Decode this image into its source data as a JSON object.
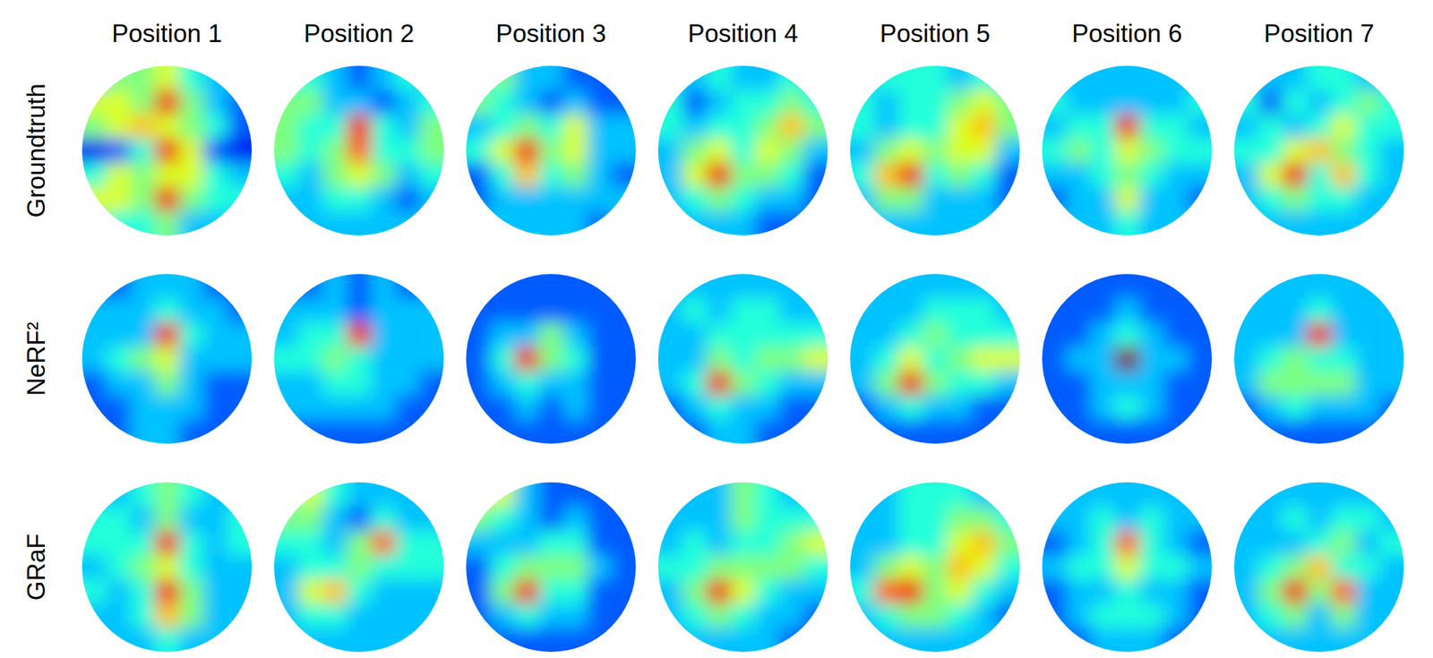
{
  "chart_data": {
    "type": "heatmap_grid",
    "columns": [
      "Position 1",
      "Position 2",
      "Position 3",
      "Position 4",
      "Position 5",
      "Position 6",
      "Position 7"
    ],
    "rows": [
      "Groundtruth",
      "NeRF²",
      "GRaF"
    ],
    "color_range": [
      0,
      10
    ],
    "cells": [
      [
        [
          [
            3,
            5,
            5,
            6,
            4,
            3,
            3
          ],
          [
            6,
            6,
            5,
            9,
            5,
            3,
            2
          ],
          [
            5,
            6,
            7,
            6,
            5,
            4,
            2
          ],
          [
            1,
            2,
            4,
            9,
            6,
            2,
            1
          ],
          [
            4,
            6,
            5,
            6,
            6,
            4,
            3
          ],
          [
            6,
            6,
            5,
            9,
            5,
            4,
            4
          ],
          [
            5,
            4,
            4,
            5,
            3,
            3,
            3
          ]
        ],
        [
          [
            4,
            4,
            3,
            2,
            3,
            4,
            3
          ],
          [
            5,
            5,
            3,
            3,
            2,
            3,
            4
          ],
          [
            5,
            4,
            4,
            9,
            4,
            3,
            5
          ],
          [
            5,
            4,
            5,
            8,
            4,
            4,
            5
          ],
          [
            4,
            3,
            5,
            6,
            5,
            3,
            4
          ],
          [
            3,
            3,
            4,
            4,
            3,
            2,
            3
          ],
          [
            3,
            3,
            3,
            3,
            3,
            3,
            3
          ]
        ],
        [
          [
            4,
            5,
            3,
            3,
            2,
            2,
            2
          ],
          [
            5,
            4,
            3,
            2,
            3,
            2,
            2
          ],
          [
            3,
            4,
            5,
            4,
            6,
            3,
            3
          ],
          [
            4,
            6,
            9,
            5,
            6,
            3,
            3
          ],
          [
            2,
            4,
            7,
            4,
            5,
            3,
            2
          ],
          [
            2,
            3,
            3,
            3,
            3,
            3,
            3
          ],
          [
            3,
            3,
            3,
            3,
            3,
            2,
            3
          ]
        ],
        [
          [
            3,
            3,
            4,
            3,
            3,
            4,
            3
          ],
          [
            4,
            2,
            3,
            4,
            4,
            5,
            4
          ],
          [
            4,
            3,
            4,
            4,
            5,
            7,
            5
          ],
          [
            3,
            5,
            6,
            4,
            6,
            5,
            3
          ],
          [
            3,
            6,
            9,
            5,
            5,
            4,
            2
          ],
          [
            3,
            4,
            5,
            4,
            3,
            3,
            2
          ],
          [
            3,
            3,
            3,
            3,
            2,
            2,
            2
          ]
        ],
        [
          [
            3,
            4,
            4,
            4,
            3,
            4,
            3
          ],
          [
            4,
            3,
            4,
            4,
            5,
            6,
            5
          ],
          [
            4,
            3,
            4,
            4,
            6,
            7,
            5
          ],
          [
            3,
            5,
            6,
            5,
            6,
            6,
            3
          ],
          [
            4,
            7,
            9,
            4,
            5,
            4,
            2
          ],
          [
            3,
            5,
            5,
            3,
            3,
            3,
            2
          ],
          [
            3,
            3,
            3,
            3,
            3,
            3,
            3
          ]
        ],
        [
          [
            3,
            3,
            3,
            3,
            3,
            3,
            3
          ],
          [
            4,
            3,
            3,
            3,
            3,
            3,
            4
          ],
          [
            3,
            4,
            4,
            9,
            4,
            4,
            3
          ],
          [
            4,
            5,
            4,
            6,
            5,
            4,
            4
          ],
          [
            3,
            3,
            4,
            5,
            4,
            3,
            3
          ],
          [
            2,
            3,
            3,
            6,
            3,
            3,
            2
          ],
          [
            3,
            3,
            3,
            4,
            3,
            3,
            3
          ]
        ],
        [
          [
            3,
            3,
            3,
            4,
            4,
            3,
            3
          ],
          [
            4,
            2,
            4,
            3,
            4,
            5,
            4
          ],
          [
            3,
            4,
            3,
            4,
            6,
            4,
            4
          ],
          [
            4,
            4,
            6,
            7,
            5,
            4,
            3
          ],
          [
            3,
            6,
            9,
            4,
            7,
            4,
            3
          ],
          [
            3,
            4,
            5,
            4,
            4,
            3,
            3
          ],
          [
            3,
            3,
            3,
            3,
            3,
            3,
            3
          ]
        ]
      ],
      [
        [
          [
            2,
            2,
            3,
            3,
            3,
            2,
            2
          ],
          [
            3,
            3,
            3,
            4,
            3,
            3,
            2
          ],
          [
            3,
            3,
            3,
            9,
            4,
            3,
            3
          ],
          [
            3,
            4,
            5,
            6,
            3,
            3,
            3
          ],
          [
            2,
            3,
            3,
            5,
            3,
            2,
            2
          ],
          [
            2,
            2,
            3,
            3,
            3,
            2,
            2
          ],
          [
            2,
            2,
            3,
            3,
            2,
            2,
            2
          ]
        ],
        [
          [
            2,
            2,
            3,
            2,
            3,
            2,
            2
          ],
          [
            3,
            3,
            3,
            2,
            3,
            3,
            3
          ],
          [
            3,
            4,
            4,
            9,
            3,
            3,
            3
          ],
          [
            4,
            4,
            5,
            4,
            3,
            3,
            3
          ],
          [
            3,
            3,
            4,
            4,
            3,
            3,
            2
          ],
          [
            3,
            3,
            3,
            3,
            3,
            2,
            2
          ],
          [
            2,
            2,
            2,
            2,
            2,
            2,
            2
          ]
        ],
        [
          [
            2,
            2,
            2,
            2,
            2,
            2,
            2
          ],
          [
            2,
            2,
            2,
            2,
            2,
            2,
            2
          ],
          [
            2,
            3,
            3,
            5,
            3,
            2,
            2
          ],
          [
            2,
            4,
            9,
            5,
            4,
            2,
            2
          ],
          [
            2,
            3,
            4,
            3,
            3,
            2,
            2
          ],
          [
            2,
            2,
            3,
            2,
            3,
            2,
            2
          ],
          [
            2,
            2,
            2,
            2,
            2,
            2,
            2
          ]
        ],
        [
          [
            3,
            3,
            3,
            3,
            3,
            3,
            3
          ],
          [
            3,
            4,
            3,
            4,
            4,
            3,
            3
          ],
          [
            3,
            3,
            4,
            4,
            4,
            4,
            4
          ],
          [
            3,
            3,
            5,
            4,
            5,
            5,
            6
          ],
          [
            3,
            4,
            9,
            5,
            4,
            3,
            3
          ],
          [
            2,
            3,
            4,
            3,
            3,
            2,
            2
          ],
          [
            2,
            2,
            3,
            3,
            2,
            2,
            2
          ]
        ],
        [
          [
            3,
            3,
            3,
            3,
            3,
            3,
            3
          ],
          [
            3,
            3,
            3,
            4,
            4,
            4,
            3
          ],
          [
            3,
            3,
            4,
            5,
            4,
            4,
            4
          ],
          [
            3,
            4,
            6,
            4,
            5,
            6,
            6
          ],
          [
            3,
            5,
            9,
            5,
            4,
            4,
            3
          ],
          [
            2,
            3,
            4,
            3,
            3,
            2,
            2
          ],
          [
            2,
            2,
            2,
            2,
            2,
            2,
            2
          ]
        ],
        [
          [
            2,
            2,
            2,
            2,
            2,
            2,
            2
          ],
          [
            2,
            2,
            2,
            3,
            2,
            2,
            2
          ],
          [
            2,
            2,
            3,
            4,
            3,
            2,
            2
          ],
          [
            2,
            3,
            3,
            10,
            3,
            3,
            2
          ],
          [
            2,
            2,
            3,
            3,
            3,
            2,
            2
          ],
          [
            2,
            2,
            3,
            4,
            3,
            2,
            2
          ],
          [
            2,
            2,
            2,
            2,
            2,
            2,
            2
          ]
        ],
        [
          [
            3,
            3,
            3,
            3,
            3,
            3,
            3
          ],
          [
            3,
            3,
            3,
            4,
            3,
            3,
            3
          ],
          [
            3,
            3,
            3,
            9,
            3,
            3,
            3
          ],
          [
            3,
            4,
            5,
            4,
            4,
            3,
            3
          ],
          [
            3,
            5,
            5,
            5,
            5,
            3,
            3
          ],
          [
            2,
            3,
            4,
            3,
            3,
            3,
            2
          ],
          [
            2,
            2,
            2,
            2,
            2,
            2,
            2
          ]
        ]
      ],
      [
        [
          [
            3,
            3,
            4,
            5,
            4,
            3,
            3
          ],
          [
            4,
            4,
            3,
            5,
            3,
            3,
            4
          ],
          [
            4,
            4,
            4,
            9,
            4,
            3,
            4
          ],
          [
            3,
            4,
            5,
            6,
            4,
            3,
            3
          ],
          [
            4,
            3,
            4,
            9,
            5,
            3,
            3
          ],
          [
            3,
            3,
            4,
            7,
            5,
            3,
            3
          ],
          [
            3,
            3,
            3,
            4,
            3,
            3,
            3
          ]
        ],
        [
          [
            4,
            6,
            4,
            3,
            3,
            3,
            3
          ],
          [
            5,
            5,
            3,
            2,
            4,
            3,
            3
          ],
          [
            4,
            4,
            3,
            5,
            8,
            4,
            4
          ],
          [
            3,
            4,
            4,
            5,
            4,
            4,
            4
          ],
          [
            3,
            6,
            7,
            4,
            3,
            3,
            3
          ],
          [
            3,
            4,
            4,
            3,
            3,
            3,
            3
          ],
          [
            3,
            3,
            3,
            3,
            3,
            3,
            3
          ]
        ],
        [
          [
            6,
            6,
            3,
            2,
            2,
            2,
            2
          ],
          [
            5,
            4,
            3,
            2,
            3,
            2,
            2
          ],
          [
            3,
            3,
            3,
            4,
            4,
            2,
            2
          ],
          [
            2,
            4,
            5,
            5,
            5,
            3,
            2
          ],
          [
            2,
            5,
            9,
            4,
            4,
            2,
            2
          ],
          [
            2,
            3,
            4,
            3,
            3,
            2,
            2
          ],
          [
            2,
            2,
            2,
            2,
            2,
            2,
            2
          ]
        ],
        [
          [
            3,
            3,
            3,
            5,
            4,
            3,
            3
          ],
          [
            3,
            3,
            3,
            5,
            4,
            4,
            4
          ],
          [
            3,
            4,
            3,
            4,
            4,
            5,
            6
          ],
          [
            4,
            4,
            5,
            5,
            5,
            5,
            4
          ],
          [
            3,
            5,
            9,
            6,
            4,
            3,
            3
          ],
          [
            3,
            4,
            5,
            4,
            3,
            3,
            2
          ],
          [
            3,
            3,
            3,
            3,
            3,
            2,
            2
          ]
        ],
        [
          [
            3,
            3,
            4,
            4,
            4,
            3,
            3
          ],
          [
            3,
            3,
            4,
            4,
            5,
            5,
            4
          ],
          [
            3,
            3,
            4,
            4,
            6,
            7,
            5
          ],
          [
            3,
            5,
            6,
            5,
            7,
            6,
            4
          ],
          [
            4,
            8,
            9,
            5,
            6,
            4,
            3
          ],
          [
            3,
            4,
            5,
            5,
            4,
            3,
            2
          ],
          [
            3,
            3,
            3,
            3,
            3,
            3,
            3
          ]
        ],
        [
          [
            3,
            3,
            3,
            3,
            3,
            3,
            3
          ],
          [
            3,
            3,
            4,
            3,
            4,
            3,
            3
          ],
          [
            2,
            3,
            4,
            8,
            4,
            3,
            2
          ],
          [
            3,
            4,
            4,
            6,
            4,
            4,
            3
          ],
          [
            2,
            3,
            3,
            4,
            3,
            3,
            2
          ],
          [
            2,
            3,
            4,
            4,
            4,
            3,
            2
          ],
          [
            2,
            2,
            3,
            3,
            3,
            2,
            2
          ]
        ],
        [
          [
            3,
            3,
            3,
            3,
            3,
            3,
            3
          ],
          [
            3,
            3,
            4,
            3,
            4,
            4,
            3
          ],
          [
            3,
            3,
            3,
            4,
            5,
            3,
            4
          ],
          [
            3,
            4,
            5,
            7,
            4,
            4,
            3
          ],
          [
            3,
            5,
            9,
            5,
            8,
            3,
            3
          ],
          [
            3,
            4,
            5,
            3,
            5,
            3,
            3
          ],
          [
            3,
            3,
            3,
            3,
            3,
            3,
            3
          ]
        ]
      ]
    ]
  }
}
